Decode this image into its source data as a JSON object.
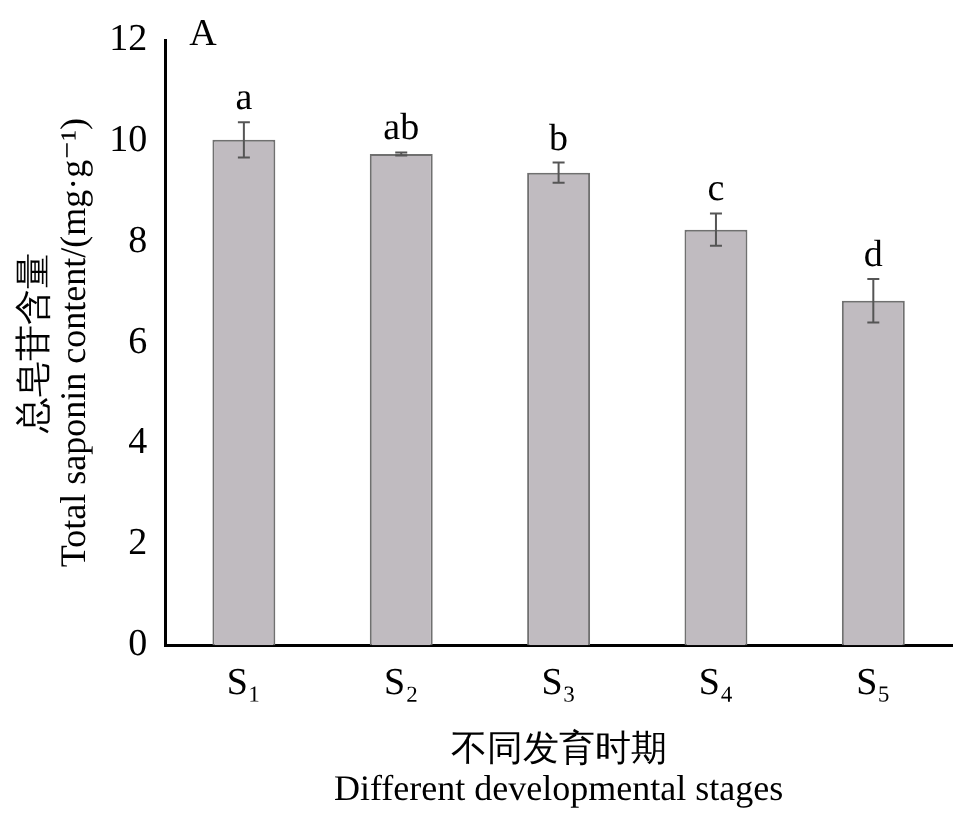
{
  "chart_data": {
    "type": "bar",
    "title": "A",
    "xlabel": "不同发育时期\nDifferent developmental stages",
    "ylabel": "总皂苷含量\nTotal saponin content/(mg·g⁻¹)",
    "categories": [
      "S₁",
      "S₂",
      "S₃",
      "S₄",
      "S₅"
    ],
    "values": [
      10.02,
      9.74,
      9.37,
      8.24,
      6.83
    ],
    "errors": [
      0.35,
      0.03,
      0.2,
      0.32,
      0.43
    ],
    "color": "#c0bbc0",
    "ylim": [
      0,
      12
    ],
    "yticks": [
      0,
      2,
      4,
      6,
      8,
      10,
      12
    ],
    "grid": false,
    "legend": false,
    "annotations": [
      {
        "text": "a",
        "x": "S₁",
        "y": 10.37
      },
      {
        "text": "ab",
        "x": "S₂",
        "y": 9.77
      },
      {
        "text": "b",
        "x": "S₃",
        "y": 9.57
      },
      {
        "text": "c",
        "x": "S₄",
        "y": 8.56
      },
      {
        "text": "d",
        "x": "S₅",
        "y": 7.26
      }
    ]
  }
}
